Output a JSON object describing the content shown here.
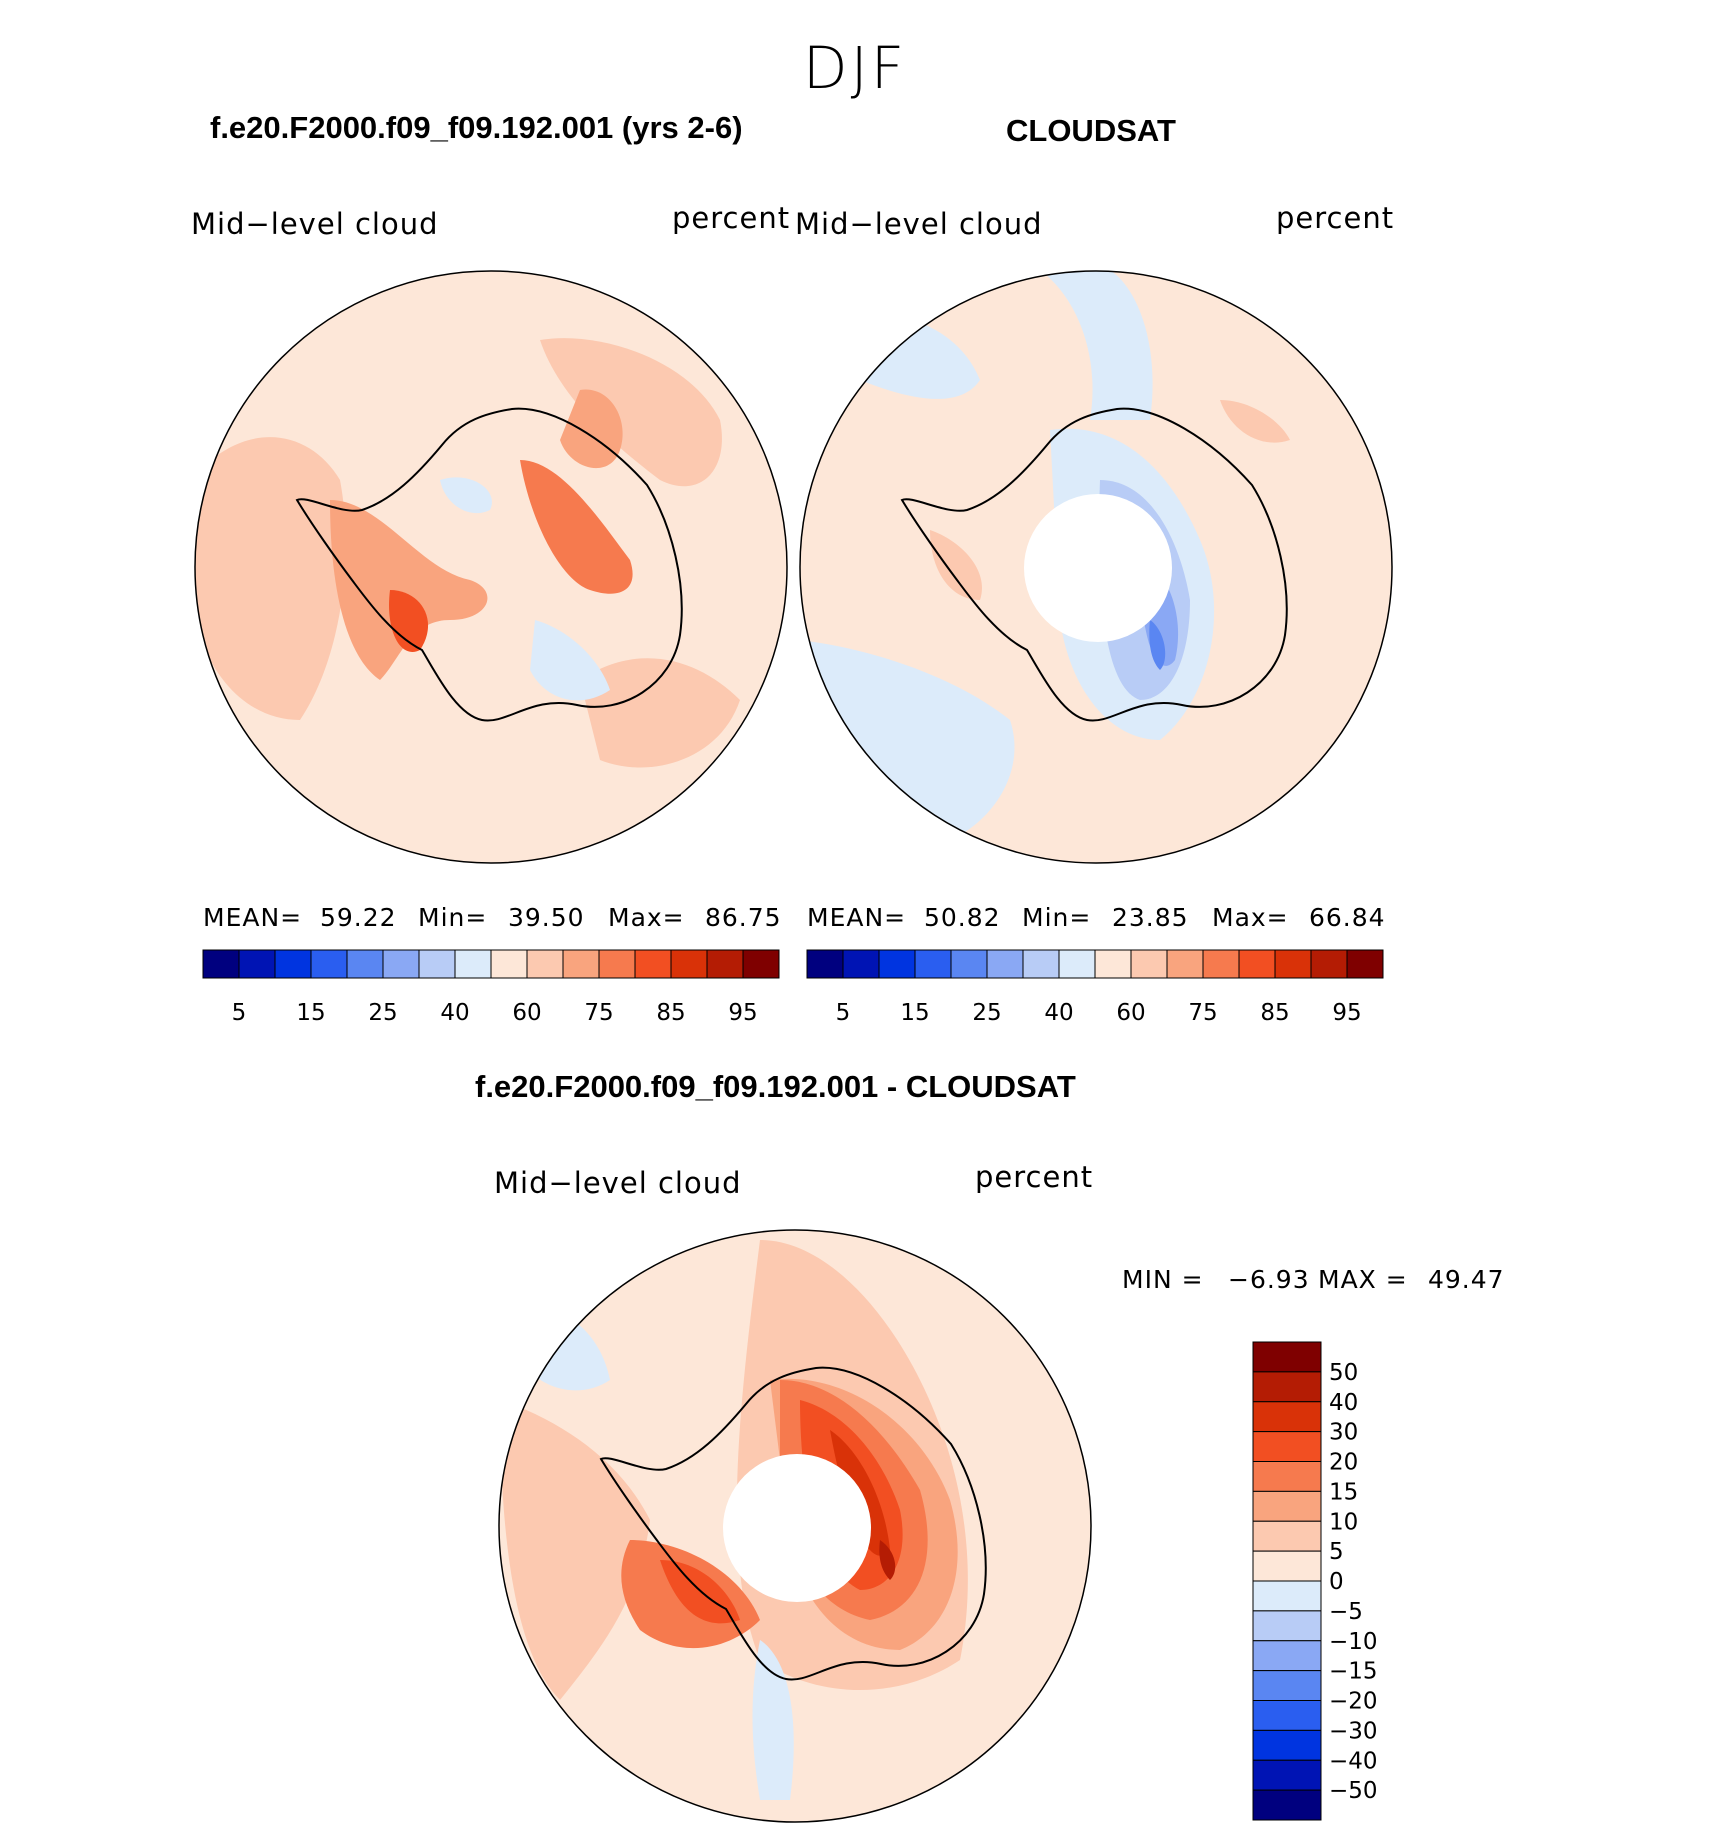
{
  "season": "DJF",
  "panels": {
    "model": {
      "title": "f.e20.F2000.f09_f09.192.001 (yrs 2-6)",
      "variable": "Mid−level cloud",
      "units": "percent",
      "stats": {
        "mean_label": "MEAN=",
        "mean": "59.22",
        "min_label": "Min=",
        "min": "39.50",
        "max_label": "Max=",
        "max": "86.75"
      }
    },
    "obs": {
      "title": "CLOUDSAT",
      "variable": "Mid−level cloud",
      "units": "percent",
      "stats": {
        "mean_label": "MEAN=",
        "mean": "50.82",
        "min_label": "Min=",
        "min": "23.85",
        "max_label": "Max=",
        "max": "66.84"
      }
    },
    "diff": {
      "title": "f.e20.F2000.f09_f09.192.001 - CLOUDSAT",
      "variable": "Mid−level cloud",
      "units": "percent",
      "stats": {
        "min_label": "MIN =",
        "min": "−6.93",
        "max_label": "MAX =",
        "max": "49.47"
      }
    }
  },
  "colorbar_abs": {
    "colors": [
      "#00007f",
      "#0014b4",
      "#0034e0",
      "#2a5ef0",
      "#5a86f2",
      "#8aa8f4",
      "#b8ccf6",
      "#dcebfa",
      "#fde7d8",
      "#fcc9b0",
      "#f9a47e",
      "#f67a4e",
      "#f24f22",
      "#d93208",
      "#b41c04",
      "#7f0000"
    ],
    "labels": [
      "5",
      "15",
      "25",
      "40",
      "60",
      "75",
      "85",
      "95"
    ]
  },
  "colorbar_diff": {
    "colors": [
      "#7f0000",
      "#b41c04",
      "#d93208",
      "#f24f22",
      "#f67a4e",
      "#f9a47e",
      "#fcc9b0",
      "#fde7d8",
      "#dcebfa",
      "#b8ccf6",
      "#8aa8f4",
      "#5a86f2",
      "#2a5ef0",
      "#0034e0",
      "#0014b4",
      "#00007f"
    ],
    "labels": [
      "50",
      "40",
      "30",
      "20",
      "15",
      "10",
      "5",
      "0",
      "−5",
      "−10",
      "−15",
      "−20",
      "−30",
      "−40",
      "−50"
    ]
  }
}
